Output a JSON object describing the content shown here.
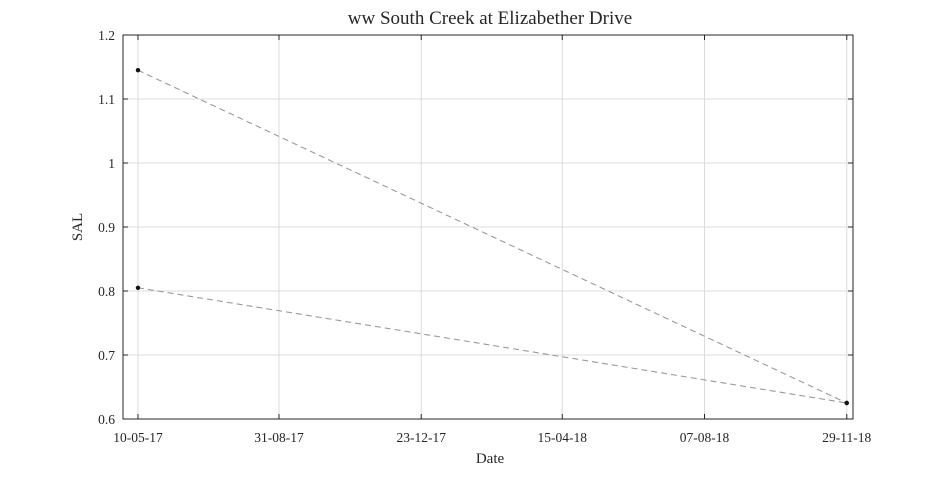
{
  "chart_data": {
    "type": "line",
    "title": "ww South Creek at Elizabether Drive",
    "xlabel": "Date",
    "ylabel": "SAL",
    "x_axis_type": "date",
    "x_date_format": "DD-MM-YY",
    "xlim": [
      "2017-04-28",
      "2018-12-04"
    ],
    "ylim": [
      0.6,
      1.2
    ],
    "x_ticks": [
      "2017-05-10",
      "2017-08-31",
      "2017-12-23",
      "2018-04-15",
      "2018-08-07",
      "2018-11-29"
    ],
    "x_tick_labels": [
      "10-05-17",
      "31-08-17",
      "23-12-17",
      "15-04-18",
      "07-08-18",
      "29-11-18"
    ],
    "y_ticks": [
      0.6,
      0.7,
      0.8,
      0.9,
      1.0,
      1.1,
      1.2
    ],
    "y_tick_labels": [
      "0.6",
      "0.7",
      "0.8",
      "0.9",
      "1",
      "1.1",
      "1.2"
    ],
    "grid": true,
    "legend": "none",
    "series": [
      {
        "line_style": "dashed",
        "line_color": "#9a9a9a",
        "marker_color": "#111111",
        "points": [
          {
            "x": "2017-05-10",
            "y": 1.145
          },
          {
            "x": "2018-11-29",
            "y": 0.625
          }
        ]
      },
      {
        "line_style": "dashed",
        "line_color": "#9a9a9a",
        "marker_color": "#111111",
        "points": [
          {
            "x": "2017-05-10",
            "y": 0.805
          },
          {
            "x": "2018-11-29",
            "y": 0.625
          }
        ]
      }
    ]
  }
}
